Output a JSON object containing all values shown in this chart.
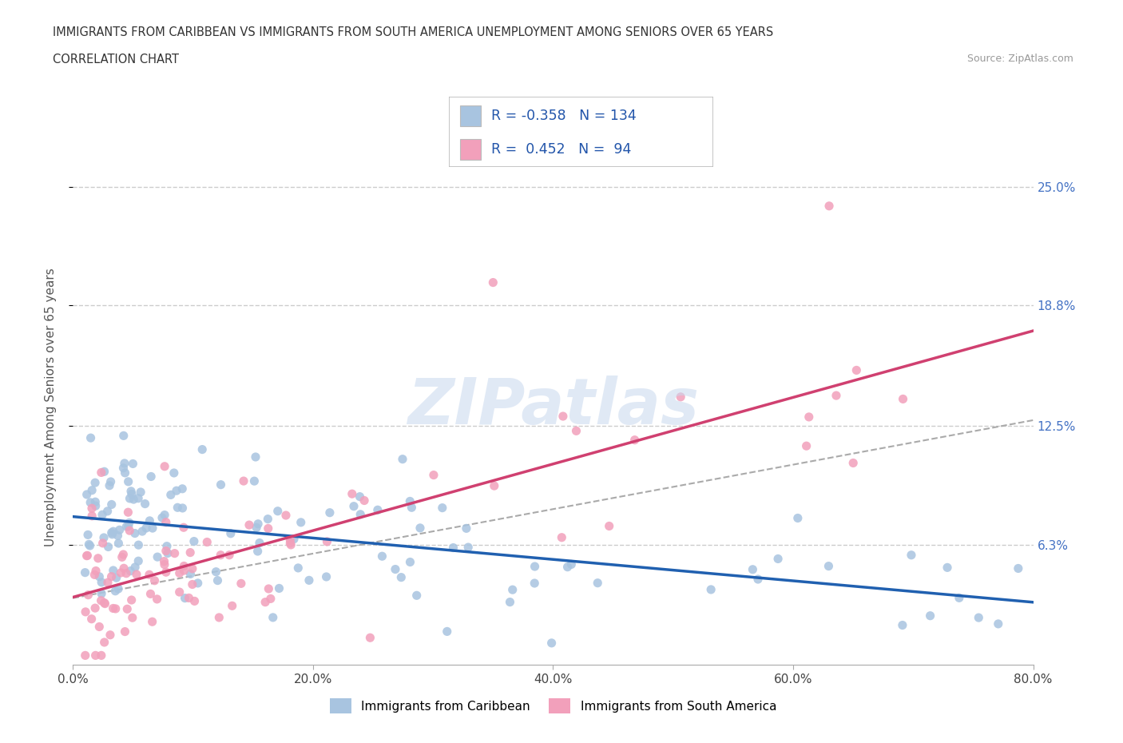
{
  "title_line1": "IMMIGRANTS FROM CARIBBEAN VS IMMIGRANTS FROM SOUTH AMERICA UNEMPLOYMENT AMONG SENIORS OVER 65 YEARS",
  "title_line2": "CORRELATION CHART",
  "source": "Source: ZipAtlas.com",
  "ylabel": "Unemployment Among Seniors over 65 years",
  "xlim": [
    0.0,
    0.8
  ],
  "ylim": [
    0.0,
    0.27
  ],
  "xtick_labels": [
    "0.0%",
    "20.0%",
    "40.0%",
    "60.0%",
    "80.0%"
  ],
  "xtick_vals": [
    0.0,
    0.2,
    0.4,
    0.6,
    0.8
  ],
  "ytick_labels": [
    "6.3%",
    "12.5%",
    "18.8%",
    "25.0%"
  ],
  "ytick_vals": [
    0.063,
    0.125,
    0.188,
    0.25
  ],
  "caribbean_R": -0.358,
  "caribbean_N": 134,
  "southamerica_R": 0.452,
  "southamerica_N": 94,
  "caribbean_color": "#a8c4e0",
  "southamerica_color": "#f2a0bb",
  "caribbean_line_color": "#2060b0",
  "southamerica_line_color": "#d04070",
  "legend_label_caribbean": "Immigrants from Caribbean",
  "legend_label_southamerica": "Immigrants from South America",
  "watermark": "ZIPatlas",
  "carib_intercept": 0.082,
  "carib_slope": -0.072,
  "sa_intercept": 0.04,
  "sa_slope": 0.145,
  "dash_line_x": [
    0.0,
    0.8
  ],
  "dash_line_y": [
    0.035,
    0.128
  ]
}
